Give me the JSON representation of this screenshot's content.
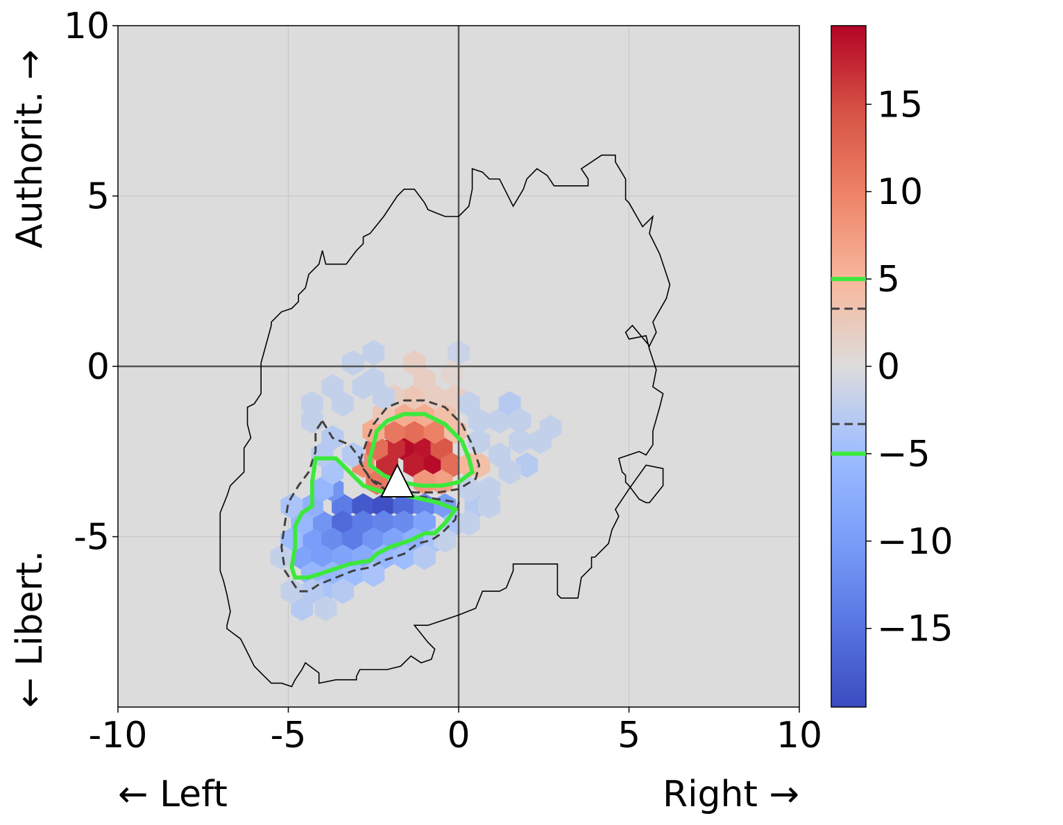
{
  "chart_data": {
    "type": "hexbin",
    "xlabel_left": "← Left",
    "xlabel_right": "Right →",
    "ylabel_top": "Authorit. →",
    "ylabel_bottom": "← Libert.",
    "xlim": [
      -10,
      10
    ],
    "ylim": [
      -10,
      10
    ],
    "x_ticks": [
      -10,
      -5,
      0,
      5,
      10
    ],
    "x_tick_labels": [
      "-10",
      "-5",
      "0",
      "5",
      "10"
    ],
    "y_ticks": [
      -5,
      0,
      5,
      10
    ],
    "y_tick_labels": [
      "-5",
      "0",
      "5",
      "10"
    ],
    "grid": true,
    "background_color": "#dcdcdc",
    "colormap": "coolwarm",
    "colorbar": {
      "range": [
        -19.5,
        19.5
      ],
      "ticks": [
        15,
        10,
        5,
        0,
        -5,
        -10,
        -15
      ],
      "tick_labels": [
        "15",
        "10",
        "5",
        "0",
        "−5",
        "−10",
        "−15"
      ],
      "contour_levels": [
        {
          "value": 5,
          "style": "solid",
          "color": "#3de83d"
        },
        {
          "value": 3.3,
          "style": "dashed",
          "color": "#404040"
        },
        {
          "value": -3.3,
          "style": "dashed",
          "color": "#404040"
        },
        {
          "value": -5,
          "style": "solid",
          "color": "#3de83d"
        }
      ]
    },
    "marker": {
      "shape": "triangle",
      "x": -1.8,
      "y": -3.4,
      "color": "#ffffff"
    },
    "hex_cells": [
      [
        -1.6,
        -2.4,
        19
      ],
      [
        -1.0,
        -2.4,
        18.5
      ],
      [
        -1.3,
        -2.9,
        18
      ],
      [
        -2.1,
        -2.9,
        17
      ],
      [
        -0.7,
        -2.9,
        19
      ],
      [
        -1.9,
        -2.4,
        17
      ],
      [
        -2.4,
        -2.4,
        12
      ],
      [
        -0.5,
        -2.4,
        14
      ],
      [
        -1.3,
        -1.9,
        12
      ],
      [
        -1.9,
        -1.9,
        11
      ],
      [
        -0.7,
        -1.9,
        10
      ],
      [
        -2.5,
        -1.9,
        6
      ],
      [
        -0.2,
        -2.9,
        12
      ],
      [
        -2.4,
        -3.4,
        11
      ],
      [
        -0.5,
        -3.4,
        7
      ],
      [
        -1.0,
        -3.4,
        8
      ],
      [
        -2.8,
        -2.9,
        9
      ],
      [
        -0.1,
        -1.9,
        4
      ],
      [
        -1.0,
        -1.4,
        6
      ],
      [
        -1.6,
        -1.4,
        6
      ],
      [
        -2.2,
        -1.4,
        3
      ],
      [
        -0.4,
        -1.4,
        4
      ],
      [
        -1.3,
        -0.9,
        3
      ],
      [
        -0.7,
        -0.9,
        2
      ],
      [
        -1.3,
        0.1,
        2
      ],
      [
        -1.0,
        -0.4,
        2
      ],
      [
        -1.9,
        -0.9,
        2
      ],
      [
        0.3,
        -2.9,
        5
      ],
      [
        0.6,
        -2.9,
        4
      ],
      [
        -0.1,
        -0.9,
        2
      ],
      [
        -3.4,
        -4.1,
        -14
      ],
      [
        -2.8,
        -4.1,
        -18
      ],
      [
        -2.2,
        -4.1,
        -19
      ],
      [
        -1.6,
        -4.1,
        -16
      ],
      [
        -1.0,
        -4.1,
        -13
      ],
      [
        -0.4,
        -4.1,
        -10
      ],
      [
        -4.0,
        -4.6,
        -11
      ],
      [
        -3.4,
        -4.6,
        -16
      ],
      [
        -2.8,
        -4.6,
        -14
      ],
      [
        -2.2,
        -4.6,
        -13
      ],
      [
        -1.6,
        -4.6,
        -12
      ],
      [
        -1.0,
        -4.6,
        -9
      ],
      [
        -4.3,
        -5.1,
        -10
      ],
      [
        -3.7,
        -5.1,
        -12
      ],
      [
        -3.1,
        -5.1,
        -14
      ],
      [
        -2.5,
        -5.1,
        -11
      ],
      [
        -1.9,
        -5.1,
        -9
      ],
      [
        -1.3,
        -5.1,
        -7
      ],
      [
        -4.6,
        -5.6,
        -9
      ],
      [
        -4.0,
        -5.6,
        -10
      ],
      [
        -3.4,
        -5.6,
        -9
      ],
      [
        -2.8,
        -5.6,
        -8
      ],
      [
        -2.2,
        -5.6,
        -6
      ],
      [
        -1.6,
        -5.6,
        -5
      ],
      [
        -4.3,
        -6.1,
        -6
      ],
      [
        -3.7,
        -6.1,
        -6
      ],
      [
        -3.1,
        -6.1,
        -5
      ],
      [
        -2.5,
        -6.1,
        -4
      ],
      [
        -3.7,
        -3.6,
        -11
      ],
      [
        -4.3,
        -4.1,
        -7
      ],
      [
        -4.0,
        -3.6,
        -6
      ],
      [
        -3.7,
        -3.1,
        -4
      ],
      [
        -4.6,
        -4.6,
        -6
      ],
      [
        -4.9,
        -5.1,
        -5
      ],
      [
        -4.9,
        -4.1,
        -4
      ],
      [
        -4.0,
        -6.6,
        -4
      ],
      [
        -3.4,
        -6.6,
        -3
      ],
      [
        -4.6,
        -7.1,
        -3
      ],
      [
        -4.3,
        -6.6,
        -3
      ],
      [
        -0.1,
        -4.6,
        -4
      ],
      [
        0.5,
        -4.1,
        -3
      ],
      [
        -0.7,
        -5.1,
        -4
      ],
      [
        -3.7,
        -2.1,
        -3
      ],
      [
        -4.0,
        -2.6,
        -3
      ],
      [
        -3.1,
        -2.6,
        -3
      ],
      [
        -3.4,
        -1.1,
        -2
      ],
      [
        -2.8,
        -0.6,
        -2
      ],
      [
        -3.7,
        -0.6,
        -2
      ],
      [
        -3.1,
        0.1,
        -2
      ],
      [
        -2.5,
        0.4,
        -2
      ],
      [
        -4.3,
        -1.1,
        -2
      ],
      [
        -4.3,
        -1.6,
        -2
      ],
      [
        -2.5,
        -0.4,
        -2
      ],
      [
        -2.2,
        -0.9,
        -2
      ],
      [
        0.3,
        -1.1,
        -2
      ],
      [
        0.6,
        -1.6,
        -2
      ],
      [
        1.2,
        -1.6,
        -2
      ],
      [
        1.5,
        -1.1,
        -3
      ],
      [
        1.8,
        -1.6,
        -2
      ],
      [
        1.2,
        -2.6,
        -2
      ],
      [
        0.6,
        -2.2,
        -2
      ],
      [
        1.8,
        -2.2,
        -2
      ],
      [
        2.4,
        -2.2,
        -2
      ],
      [
        2.7,
        -1.8,
        -2
      ],
      [
        2.0,
        -2.9,
        -3
      ],
      [
        1.5,
        -3.1,
        -2
      ],
      [
        0.9,
        -3.6,
        -2
      ],
      [
        0.3,
        -3.6,
        -2
      ],
      [
        0.9,
        -4.1,
        -2
      ],
      [
        0.3,
        -4.6,
        -2
      ],
      [
        -3.9,
        -7.1,
        -2
      ],
      [
        -4.9,
        -6.6,
        -2
      ],
      [
        -5.2,
        -5.6,
        -2
      ],
      [
        -1.0,
        -5.6,
        -3
      ],
      [
        -0.4,
        -5.1,
        -2
      ],
      [
        0.0,
        0.4,
        -1.5
      ],
      [
        -0.2,
        -0.2,
        1
      ]
    ],
    "outer_contour": [
      [
        -5.8,
        0.1
      ],
      [
        -5.5,
        1.2
      ],
      [
        -5.5,
        1.3
      ],
      [
        -5.2,
        1.6
      ],
      [
        -4.9,
        1.7
      ],
      [
        -4.7,
        1.9
      ],
      [
        -4.7,
        2.1
      ],
      [
        -4.5,
        2.3
      ],
      [
        -4.4,
        2.7
      ],
      [
        -4.1,
        3.0
      ],
      [
        -4.0,
        3.4
      ],
      [
        -3.9,
        3.0
      ],
      [
        -3.3,
        3.0
      ],
      [
        -3.0,
        3.4
      ],
      [
        -2.8,
        3.6
      ],
      [
        -2.8,
        3.8
      ],
      [
        -2.6,
        3.9
      ],
      [
        -2.2,
        4.4
      ],
      [
        -1.8,
        5.0
      ],
      [
        -1.6,
        5.2
      ],
      [
        -1.3,
        5.2
      ],
      [
        -1.0,
        4.8
      ],
      [
        -0.9,
        4.6
      ],
      [
        -0.4,
        4.4
      ],
      [
        0.0,
        4.4
      ],
      [
        0.3,
        4.7
      ],
      [
        0.4,
        5.2
      ],
      [
        0.4,
        5.8
      ],
      [
        0.7,
        5.7
      ],
      [
        0.9,
        5.5
      ],
      [
        1.2,
        5.5
      ],
      [
        1.6,
        4.7
      ],
      [
        1.9,
        5.2
      ],
      [
        2.0,
        5.5
      ],
      [
        2.3,
        5.8
      ],
      [
        2.6,
        5.6
      ],
      [
        2.8,
        5.3
      ],
      [
        3.3,
        5.3
      ],
      [
        3.8,
        5.3
      ],
      [
        3.8,
        5.5
      ],
      [
        3.6,
        5.8
      ],
      [
        4.2,
        6.2
      ],
      [
        4.6,
        6.2
      ],
      [
        4.6,
        6.0
      ],
      [
        4.9,
        5.5
      ],
      [
        4.9,
        4.9
      ],
      [
        5.0,
        4.8
      ],
      [
        5.4,
        4.1
      ],
      [
        5.7,
        4.4
      ],
      [
        5.6,
        3.9
      ],
      [
        5.9,
        3.3
      ],
      [
        6.0,
        3.0
      ],
      [
        6.2,
        2.4
      ],
      [
        6.1,
        2.0
      ],
      [
        5.7,
        1.3
      ],
      [
        5.8,
        1.0
      ],
      [
        5.6,
        0.6
      ],
      [
        5.1,
        1.2
      ],
      [
        4.9,
        1.0
      ],
      [
        5.0,
        0.8
      ],
      [
        5.5,
        0.9
      ],
      [
        5.6,
        0.5
      ],
      [
        5.8,
        -0.1
      ],
      [
        5.7,
        -0.6
      ],
      [
        6.0,
        -0.8
      ],
      [
        5.9,
        -1.2
      ],
      [
        5.7,
        -1.9
      ],
      [
        5.7,
        -2.3
      ],
      [
        5.5,
        -2.6
      ],
      [
        5.3,
        -2.5
      ],
      [
        4.7,
        -2.7
      ],
      [
        4.8,
        -3.1
      ],
      [
        4.9,
        -3.2
      ],
      [
        4.9,
        -3.4
      ],
      [
        5.0,
        -3.5
      ],
      [
        5.3,
        -3.9
      ],
      [
        5.5,
        -4.0
      ],
      [
        5.6,
        -4.0
      ],
      [
        6.0,
        -3.5
      ],
      [
        6.0,
        -3.0
      ],
      [
        5.5,
        -2.9
      ],
      [
        5.0,
        -3.6
      ],
      [
        4.6,
        -4.2
      ],
      [
        4.7,
        -4.4
      ],
      [
        4.5,
        -4.8
      ],
      [
        4.4,
        -5.2
      ],
      [
        4.0,
        -5.6
      ],
      [
        3.9,
        -5.6
      ],
      [
        3.9,
        -5.9
      ],
      [
        3.6,
        -6.2
      ],
      [
        3.5,
        -6.8
      ],
      [
        3.2,
        -6.8
      ],
      [
        3.0,
        -6.8
      ],
      [
        2.9,
        -6.7
      ],
      [
        2.9,
        -6.3
      ],
      [
        2.9,
        -5.8
      ],
      [
        1.6,
        -5.8
      ],
      [
        1.6,
        -6.0
      ],
      [
        1.4,
        -6.5
      ],
      [
        1.2,
        -6.6
      ],
      [
        0.7,
        -6.6
      ],
      [
        0.5,
        -7.1
      ],
      [
        0.0,
        -7.3
      ],
      [
        -0.6,
        -7.5
      ],
      [
        -0.9,
        -7.6
      ],
      [
        -1.3,
        -7.6
      ],
      [
        -0.9,
        -8.1
      ],
      [
        -0.7,
        -8.3
      ],
      [
        -0.8,
        -8.6
      ],
      [
        -1.1,
        -8.7
      ],
      [
        -1.4,
        -8.5
      ],
      [
        -1.7,
        -8.8
      ],
      [
        -2.1,
        -8.9
      ],
      [
        -2.9,
        -8.9
      ],
      [
        -3.0,
        -9.1
      ],
      [
        -3.0,
        -9.2
      ],
      [
        -3.6,
        -9.2
      ],
      [
        -4.1,
        -9.3
      ],
      [
        -4.1,
        -9.0
      ],
      [
        -4.5,
        -8.7
      ],
      [
        -4.6,
        -8.9
      ],
      [
        -4.8,
        -9.2
      ],
      [
        -4.9,
        -9.4
      ],
      [
        -5.2,
        -9.3
      ],
      [
        -5.5,
        -9.3
      ],
      [
        -5.7,
        -9.1
      ],
      [
        -6.0,
        -8.8
      ],
      [
        -6.2,
        -8.4
      ],
      [
        -6.4,
        -8.0
      ],
      [
        -6.8,
        -7.7
      ],
      [
        -6.8,
        -7.6
      ],
      [
        -6.7,
        -7.2
      ],
      [
        -6.8,
        -6.7
      ],
      [
        -6.9,
        -6.3
      ],
      [
        -7.0,
        -6.0
      ],
      [
        -7.0,
        -5.5
      ],
      [
        -7.0,
        -5.1
      ],
      [
        -7.0,
        -4.6
      ],
      [
        -7.0,
        -4.3
      ],
      [
        -6.8,
        -3.8
      ],
      [
        -6.7,
        -3.5
      ],
      [
        -6.3,
        -3.1
      ],
      [
        -6.3,
        -2.8
      ],
      [
        -6.3,
        -2.4
      ],
      [
        -6.1,
        -2.1
      ],
      [
        -6.2,
        -1.7
      ],
      [
        -6.2,
        -1.2
      ],
      [
        -6.0,
        -1.1
      ],
      [
        -5.8,
        -0.8
      ],
      [
        -5.8,
        -0.3
      ],
      [
        -5.8,
        0.1
      ]
    ],
    "contour_pos_solid": [
      [
        -2.6,
        -2.7
      ],
      [
        -2.5,
        -2.3
      ],
      [
        -2.4,
        -1.9
      ],
      [
        -2.1,
        -1.6
      ],
      [
        -1.6,
        -1.4
      ],
      [
        -1.0,
        -1.4
      ],
      [
        -0.4,
        -1.7
      ],
      [
        0.1,
        -2.2
      ],
      [
        0.3,
        -2.7
      ],
      [
        0.4,
        -3.1
      ],
      [
        0.0,
        -3.4
      ],
      [
        -0.5,
        -3.5
      ],
      [
        -1.1,
        -3.5
      ],
      [
        -1.7,
        -3.4
      ],
      [
        -2.2,
        -3.2
      ],
      [
        -2.6,
        -2.9
      ],
      [
        -2.6,
        -2.7
      ]
    ],
    "contour_pos_dashed": [
      [
        -2.9,
        -2.8
      ],
      [
        -2.7,
        -2.2
      ],
      [
        -2.5,
        -1.7
      ],
      [
        -2.1,
        -1.2
      ],
      [
        -1.6,
        -1.0
      ],
      [
        -1.0,
        -1.0
      ],
      [
        -0.4,
        -1.2
      ],
      [
        0.1,
        -1.7
      ],
      [
        0.4,
        -2.3
      ],
      [
        0.6,
        -2.9
      ],
      [
        0.5,
        -3.3
      ],
      [
        0.0,
        -3.6
      ],
      [
        -0.6,
        -3.7
      ],
      [
        -1.3,
        -3.7
      ],
      [
        -2.0,
        -3.6
      ],
      [
        -2.6,
        -3.3
      ],
      [
        -2.9,
        -2.8
      ]
    ],
    "contour_neg_solid": [
      [
        -4.2,
        -2.7
      ],
      [
        -3.6,
        -2.7
      ],
      [
        -3.2,
        -3.1
      ],
      [
        -2.8,
        -3.5
      ],
      [
        -2.2,
        -3.7
      ],
      [
        -1.5,
        -3.8
      ],
      [
        -0.6,
        -4.0
      ],
      [
        -0.1,
        -4.2
      ],
      [
        -0.4,
        -4.6
      ],
      [
        -0.7,
        -4.9
      ],
      [
        -1.0,
        -4.9
      ],
      [
        -1.4,
        -5.1
      ],
      [
        -2.0,
        -5.3
      ],
      [
        -2.4,
        -5.5
      ],
      [
        -2.6,
        -5.7
      ],
      [
        -3.2,
        -5.8
      ],
      [
        -3.8,
        -6.0
      ],
      [
        -4.4,
        -6.2
      ],
      [
        -4.8,
        -6.2
      ],
      [
        -4.9,
        -5.9
      ],
      [
        -4.8,
        -5.3
      ],
      [
        -4.8,
        -4.7
      ],
      [
        -4.6,
        -4.3
      ],
      [
        -4.3,
        -4.1
      ],
      [
        -4.3,
        -3.4
      ],
      [
        -4.2,
        -2.7
      ]
    ],
    "contour_neg_dashed": [
      [
        -4.0,
        -1.6
      ],
      [
        -3.7,
        -2.1
      ],
      [
        -3.2,
        -2.3
      ],
      [
        -2.9,
        -2.7
      ],
      [
        -2.8,
        -3.0
      ],
      [
        -2.5,
        -3.4
      ],
      [
        -2.0,
        -3.7
      ],
      [
        -1.3,
        -3.8
      ],
      [
        -0.6,
        -3.9
      ],
      [
        0.0,
        -4.0
      ],
      [
        -0.1,
        -4.5
      ],
      [
        -0.5,
        -4.9
      ],
      [
        -0.8,
        -5.1
      ],
      [
        -1.2,
        -5.2
      ],
      [
        -1.6,
        -5.5
      ],
      [
        -2.2,
        -5.7
      ],
      [
        -2.6,
        -5.9
      ],
      [
        -3.1,
        -6.0
      ],
      [
        -3.6,
        -6.2
      ],
      [
        -4.1,
        -6.4
      ],
      [
        -4.4,
        -6.6
      ],
      [
        -4.7,
        -6.6
      ],
      [
        -5.1,
        -6.0
      ],
      [
        -5.2,
        -5.3
      ],
      [
        -5.1,
        -4.6
      ],
      [
        -5.0,
        -4.0
      ],
      [
        -4.7,
        -3.5
      ],
      [
        -4.4,
        -3.1
      ],
      [
        -4.2,
        -2.5
      ],
      [
        -4.2,
        -1.9
      ],
      [
        -4.0,
        -1.6
      ]
    ]
  }
}
